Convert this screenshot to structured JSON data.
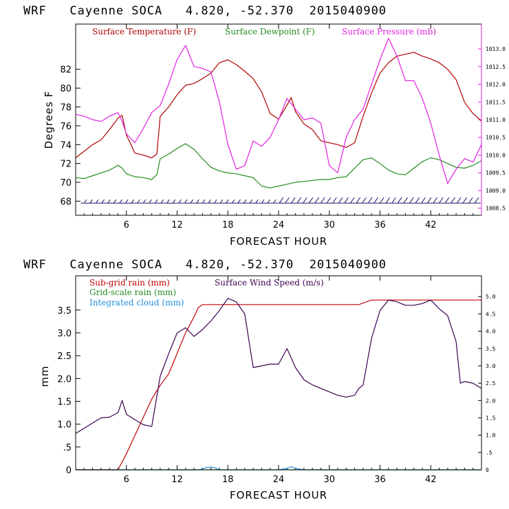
{
  "chart_data": [
    {
      "type": "line",
      "title": "WRF   Cayenne SOCA   4.820, -52.370  2015040900",
      "xlabel": "FORECAST HOUR",
      "ylabel": "Degrees F",
      "xlim": [
        0,
        48
      ],
      "ylim": [
        66.5,
        86.8
      ],
      "xticks": [
        6,
        12,
        18,
        24,
        30,
        36,
        42
      ],
      "yticks": [
        68,
        70,
        72,
        74,
        76,
        78,
        80,
        82
      ],
      "y2label": "Surface Pressure (mb)",
      "y2lim": [
        1008.3,
        1013.7
      ],
      "y2ticks": [
        1008.5,
        1009.0,
        1009.5,
        1010.0,
        1010.5,
        1011.0,
        1011.5,
        1012.0,
        1012.5,
        1013.0
      ],
      "y2ticklabels": [
        "1008.5",
        "1009.0",
        "1009.5",
        "1010.0",
        "1010.5",
        "1011.0",
        "1011.5",
        "1012.0",
        "1012.5",
        "1013.0"
      ],
      "legend": [
        "Surface Temperature (F)",
        "Surface Dewpoint (F)",
        "Surface Pressure (mb)"
      ],
      "series": [
        {
          "name": "Surface Temperature (F)",
          "color": "#b00000",
          "axis": "left",
          "x": [
            0,
            1,
            2,
            3,
            4,
            5,
            5.5,
            6,
            6.5,
            7,
            8,
            9,
            9.6,
            10,
            11,
            12,
            13,
            14,
            15,
            16,
            17,
            18,
            19,
            20,
            21,
            22,
            23,
            24,
            25,
            25.5,
            26,
            27,
            28,
            29,
            30,
            31,
            32,
            33,
            34,
            35,
            36,
            37,
            38,
            39,
            40,
            41,
            42,
            43,
            44,
            45,
            46,
            47,
            48
          ],
          "y": [
            72.6,
            73.3,
            74.0,
            74.5,
            75.6,
            76.8,
            77.1,
            75.0,
            74.1,
            73.1,
            72.9,
            72.6,
            73.0,
            77.0,
            78.0,
            79.3,
            80.3,
            80.5,
            81.0,
            81.6,
            82.7,
            83.0,
            82.5,
            81.8,
            81.0,
            79.6,
            77.3,
            76.7,
            78.2,
            79.0,
            77.5,
            76.2,
            75.6,
            74.4,
            74.2,
            74.0,
            73.7,
            74.2,
            77.0,
            79.5,
            81.6,
            82.7,
            83.4,
            83.6,
            83.8,
            83.4,
            83.1,
            82.7,
            82.0,
            80.9,
            78.5,
            77.3,
            76.5
          ]
        },
        {
          "name": "Surface Dewpoint (F)",
          "color": "#228b22",
          "axis": "left",
          "x": [
            0,
            1,
            2,
            3,
            4,
            5,
            5.5,
            6,
            7,
            8,
            9,
            9.6,
            10,
            11,
            12,
            13,
            14,
            15,
            16,
            17,
            18,
            19,
            20,
            21,
            22,
            23,
            24,
            25,
            26,
            27,
            28,
            29,
            30,
            31,
            32,
            33,
            34,
            35,
            36,
            37,
            38,
            39,
            40,
            41,
            42,
            43,
            44,
            45,
            46,
            47,
            48
          ],
          "y": [
            70.5,
            70.4,
            70.7,
            71.0,
            71.3,
            71.8,
            71.5,
            70.9,
            70.6,
            70.5,
            70.3,
            70.8,
            72.5,
            73.0,
            73.6,
            74.1,
            73.5,
            72.5,
            71.6,
            71.2,
            71.0,
            70.9,
            70.7,
            70.5,
            69.6,
            69.4,
            69.6,
            69.8,
            70.0,
            70.1,
            70.2,
            70.3,
            70.3,
            70.5,
            70.6,
            71.5,
            72.4,
            72.6,
            72.0,
            71.3,
            70.9,
            70.8,
            71.5,
            72.2,
            72.6,
            72.4,
            72.0,
            71.6,
            71.5,
            71.8,
            72.3
          ]
        },
        {
          "name": "Surface Pressure (mb)",
          "color": "#e020e0",
          "axis": "right",
          "x": [
            0,
            1,
            2,
            3,
            4,
            5,
            5.5,
            6,
            7,
            8,
            9,
            10,
            11,
            12,
            13,
            14,
            15,
            16,
            17,
            18,
            19,
            20,
            21,
            22,
            23,
            24,
            25,
            26,
            27,
            28,
            29,
            30,
            31,
            32,
            33,
            34,
            35,
            36,
            37,
            38,
            39,
            40,
            41,
            42,
            43,
            44,
            45,
            46,
            47,
            48
          ],
          "y": [
            1011.15,
            1011.1,
            1011.0,
            1010.95,
            1011.1,
            1011.2,
            1010.95,
            1010.6,
            1010.35,
            1010.75,
            1011.2,
            1011.4,
            1012.0,
            1012.7,
            1013.1,
            1012.5,
            1012.45,
            1012.35,
            1011.5,
            1010.3,
            1009.6,
            1009.7,
            1010.4,
            1010.25,
            1010.5,
            1011.0,
            1011.6,
            1011.3,
            1011.0,
            1011.05,
            1010.9,
            1009.7,
            1009.5,
            1010.5,
            1011.0,
            1011.3,
            1012.0,
            1012.7,
            1013.3,
            1012.8,
            1012.1,
            1012.1,
            1011.6,
            1010.9,
            1010.0,
            1009.2,
            1009.6,
            1009.9,
            1009.8,
            1010.3
          ]
        }
      ],
      "annotations": [
        "wind barbs along bottom (68 F level) across all forecast hours"
      ]
    },
    {
      "type": "line",
      "title": "WRF   Cayenne SOCA   4.820, -52.370  2015040900",
      "xlabel": "FORECAST HOUR",
      "ylabel": "mm",
      "xlim": [
        0,
        48
      ],
      "ylim": [
        0,
        4.25
      ],
      "xticks": [
        6,
        12,
        18,
        24,
        30,
        36,
        42
      ],
      "yticks": [
        0,
        0.5,
        1.0,
        1.5,
        2.0,
        2.5,
        3.0,
        3.5
      ],
      "yticklabels": [
        "0",
        ".5",
        "1.0",
        "1.5",
        "2.0",
        "2.5",
        "3.0",
        "3.5"
      ],
      "y2label": "Surface Wind Speed (m/s)",
      "y2lim": [
        0,
        5.6
      ],
      "y2ticks": [
        0,
        0.5,
        1.0,
        1.5,
        2.0,
        2.5,
        3.0,
        3.5,
        4.0,
        4.5,
        5.0
      ],
      "y2ticklabels": [
        "0",
        ".5",
        "1.0",
        "1.5",
        "2.0",
        "2.5",
        "3.0",
        "3.5",
        "4.0",
        "4.5",
        "5.0"
      ],
      "legend": [
        "Sub-grid rain (mm)",
        "Surface Wind Speed (m/s)",
        "Grid-scale rain (mm)",
        "Integrated cloud (mm)"
      ],
      "series": [
        {
          "name": "Sub-grid rain (mm)",
          "color": "#c00000",
          "axis": "left",
          "x": [
            0,
            5,
            6,
            7,
            8,
            9,
            10,
            11,
            12,
            13,
            14,
            14.5,
            15,
            20,
            25,
            30,
            33.5,
            35,
            40,
            45,
            48
          ],
          "y": [
            0,
            0,
            0.35,
            0.75,
            1.15,
            1.55,
            1.85,
            2.1,
            2.55,
            3.0,
            3.35,
            3.55,
            3.62,
            3.62,
            3.62,
            3.62,
            3.62,
            3.72,
            3.72,
            3.72,
            3.72
          ]
        },
        {
          "name": "Surface Wind Speed (m/s)",
          "color": "#3a0050",
          "axis": "right",
          "x": [
            0,
            1,
            2,
            3,
            4,
            5,
            5.5,
            6,
            7,
            8,
            9,
            10,
            11,
            12,
            13,
            14,
            15,
            16,
            17,
            18,
            19,
            20,
            21,
            22,
            23,
            24,
            25,
            26,
            27,
            28,
            29,
            30,
            31,
            32,
            33,
            33.5,
            34,
            35,
            36,
            37,
            38,
            39,
            40,
            41,
            42,
            43,
            44,
            45,
            45.5,
            46,
            47,
            48
          ],
          "y": [
            1.05,
            1.2,
            1.35,
            1.5,
            1.52,
            1.65,
            2.0,
            1.6,
            1.45,
            1.3,
            1.25,
            2.7,
            3.35,
            3.95,
            4.1,
            3.85,
            4.05,
            4.3,
            4.6,
            4.95,
            4.85,
            4.5,
            2.95,
            3.0,
            3.05,
            3.05,
            3.5,
            2.95,
            2.6,
            2.45,
            2.35,
            2.25,
            2.15,
            2.1,
            2.15,
            2.35,
            2.45,
            3.8,
            4.6,
            4.9,
            4.85,
            4.75,
            4.75,
            4.8,
            4.9,
            4.65,
            4.45,
            3.7,
            2.5,
            2.55,
            2.5,
            2.35
          ]
        },
        {
          "name": "Grid-scale rain (mm)",
          "color": "#228b22",
          "axis": "left",
          "x": [
            0,
            48
          ],
          "y": [
            0,
            0
          ]
        },
        {
          "name": "Integrated cloud (mm)",
          "color": "#1e90e0",
          "axis": "left",
          "x": [
            0,
            14.5,
            15,
            15.5,
            16,
            16.5,
            17,
            18,
            20,
            24,
            25,
            25.5,
            26,
            27,
            30,
            48
          ],
          "y": [
            0,
            0,
            0.02,
            0.05,
            0.06,
            0.04,
            0,
            0,
            0,
            0,
            0.03,
            0.07,
            0.03,
            0,
            0,
            0
          ]
        }
      ]
    }
  ]
}
